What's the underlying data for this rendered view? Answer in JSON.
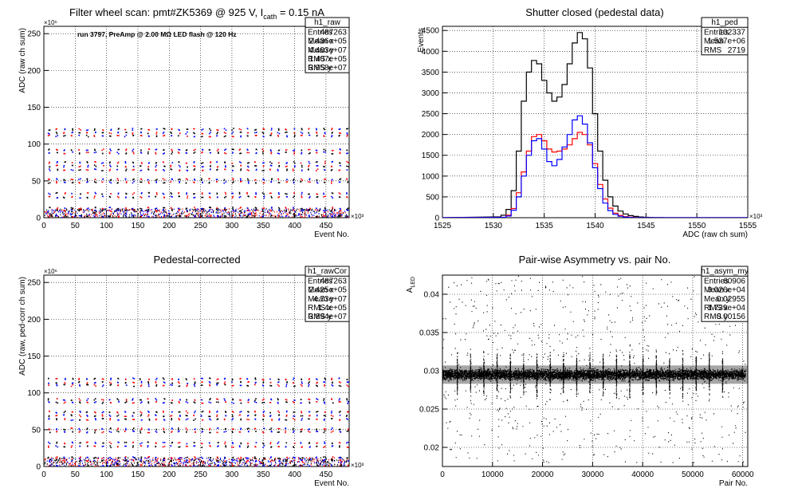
{
  "chart_data": [
    {
      "id": "raw",
      "type": "scatter",
      "title": "Filter wheel scan: pmt#ZK5369 @   925 V, I",
      "title_sub": "cath",
      "title_tail": " = 0.15 nA",
      "annotation": "run 3797, PreAmp @ 2.00 MΩ LED flash @  120 Hz",
      "xlabel": "Event No.",
      "ylabel": "ADC (raw ch sum)",
      "x_exponent": "×10³",
      "y_exponent": "×10⁶",
      "xlim": [
        0,
        487
      ],
      "ylim": [
        0,
        260
      ],
      "x_ticks": [
        "0",
        "50",
        "100",
        "150",
        "200",
        "250",
        "300",
        "350",
        "400",
        "450"
      ],
      "y_ticks": [
        "0",
        "50",
        "100",
        "150",
        "200",
        "250"
      ],
      "levels": [
        2,
        10,
        13,
        28,
        33,
        48,
        52,
        65,
        70,
        75,
        88,
        92,
        111,
        115,
        120
      ],
      "grid": true,
      "colors": {
        "series_a": "#ff0000",
        "series_b": "#0000ff",
        "ink": "#000000"
      },
      "stats": {
        "name": "h1_raw",
        "rows": [
          {
            "label": "Entries",
            "value": "487263"
          },
          {
            "label": "Mean x",
            "value": "2.436e+05"
          },
          {
            "label": "Mean y",
            "value": "4.403e+07"
          },
          {
            "label": "RMS x",
            "value": "1.407e+05"
          },
          {
            "label": "RMS y",
            "value": "3.958e+07"
          }
        ]
      }
    },
    {
      "id": "ped",
      "type": "line",
      "title": "Shutter closed (pedestal data)",
      "xlabel": "ADC (raw ch sum)",
      "ylabel": "Events",
      "x_exponent": "×10³",
      "xlim": [
        1525,
        1555
      ],
      "ylim": [
        0,
        4600
      ],
      "x_ticks": [
        "1525",
        "1530",
        "1535",
        "1540",
        "1545",
        "1550",
        "1555"
      ],
      "y_ticks": [
        "0",
        "500",
        "1000",
        "1500",
        "2000",
        "2500",
        "3000",
        "3500",
        "4000",
        "4500"
      ],
      "grid": true,
      "series": [
        {
          "color": "#000000",
          "x": [
            1530.5,
            1531,
            1531.5,
            1532,
            1532.5,
            1533,
            1533.5,
            1534,
            1534.5,
            1535,
            1535.5,
            1536,
            1536.5,
            1537,
            1537.5,
            1538,
            1538.5,
            1539,
            1539.5,
            1540,
            1540.5,
            1541,
            1541.5,
            1542,
            1542.5,
            1543,
            1543.5,
            1544,
            1544.5,
            1545,
            1545.5,
            1546,
            1546.5,
            1547
          ],
          "values": [
            20,
            60,
            200,
            650,
            1600,
            2800,
            3500,
            3780,
            3700,
            3300,
            3000,
            2800,
            2900,
            3200,
            3700,
            4200,
            4450,
            4300,
            3600,
            2500,
            1600,
            900,
            500,
            280,
            160,
            90,
            50,
            30,
            18,
            10,
            6,
            4,
            2,
            0
          ]
        },
        {
          "color": "#ff0000",
          "x": [
            1531,
            1531.5,
            1532,
            1532.5,
            1533,
            1533.5,
            1534,
            1534.5,
            1535,
            1535.5,
            1536,
            1536.5,
            1537,
            1537.5,
            1538,
            1538.5,
            1539,
            1539.5,
            1540,
            1540.5,
            1541,
            1541.5,
            1542,
            1542.5,
            1543,
            1543.5,
            1544,
            1544.5
          ],
          "values": [
            10,
            60,
            220,
            600,
            1100,
            1600,
            1950,
            2000,
            1850,
            1650,
            1580,
            1600,
            1650,
            1750,
            1900,
            2050,
            2000,
            1750,
            1300,
            800,
            450,
            230,
            110,
            55,
            25,
            12,
            5,
            0
          ]
        },
        {
          "color": "#0000ff",
          "x": [
            1531,
            1531.5,
            1532,
            1532.5,
            1533,
            1533.5,
            1534,
            1534.5,
            1535,
            1535.5,
            1536,
            1536.5,
            1537,
            1537.5,
            1538,
            1538.5,
            1539,
            1539.5,
            1540,
            1540.5,
            1541,
            1541.5,
            1542,
            1542.5,
            1543,
            1543.5,
            1544
          ],
          "values": [
            8,
            40,
            180,
            500,
            1000,
            1500,
            1850,
            1900,
            1650,
            1350,
            1250,
            1400,
            1700,
            2000,
            2350,
            2450,
            2250,
            1800,
            1200,
            700,
            350,
            170,
            80,
            35,
            15,
            6,
            0
          ]
        }
      ],
      "stats": {
        "name": "h1_ped",
        "rows": [
          {
            "label": "Entries",
            "value": "102337"
          },
          {
            "label": "Mean",
            "value": "1.537e+06"
          },
          {
            "label": "RMS",
            "value": "2719"
          }
        ]
      }
    },
    {
      "id": "cor",
      "type": "scatter",
      "title": "Pedestal-corrected",
      "xlabel": "Event No.",
      "ylabel": "ADC (raw, ped-corr ch sum)",
      "x_exponent": "×10³",
      "y_exponent": "×10⁶",
      "xlim": [
        0,
        487
      ],
      "ylim": [
        0,
        260
      ],
      "x_ticks": [
        "0",
        "50",
        "100",
        "150",
        "200",
        "250",
        "300",
        "350",
        "400",
        "450"
      ],
      "y_ticks": [
        "0",
        "50",
        "100",
        "150",
        "200",
        "250"
      ],
      "levels": [
        1,
        8,
        12,
        27,
        32,
        47,
        51,
        64,
        69,
        74,
        87,
        91,
        110,
        114,
        119
      ],
      "grid": true,
      "stats": {
        "name": "h1_rawCor",
        "rows": [
          {
            "label": "Entries",
            "value": "487263"
          },
          {
            "label": "Mean x",
            "value": "2.425e+05"
          },
          {
            "label": "Mean y",
            "value": "4.73e+07"
          },
          {
            "label": "RMS x",
            "value": "1.4e+05"
          },
          {
            "label": "RMS y",
            "value": "3.894e+07"
          }
        ]
      }
    },
    {
      "id": "asym",
      "type": "scatter",
      "title": "Pair-wise Asymmetry vs. pair No.",
      "xlabel": "Pair No.",
      "ylabel": "A",
      "ylabel_sub": "LED",
      "xlim": [
        0,
        61000
      ],
      "ylim": [
        0.0175,
        0.0425
      ],
      "x_ticks": [
        "0",
        "10000",
        "20000",
        "30000",
        "40000",
        "50000",
        "60000"
      ],
      "y_ticks": [
        "0.02",
        "0.025",
        "0.03",
        "0.035",
        "0.04"
      ],
      "band_center": 0.0295,
      "grid": true,
      "stats": {
        "name": "h1_asym_my",
        "rows": [
          {
            "label": "Entries",
            "value": "60906"
          },
          {
            "label": "Mean x",
            "value": "3.026e+04"
          },
          {
            "label": "Mean y",
            "value": "0.02955"
          },
          {
            "label": "RMS x",
            "value": "1.739e+04"
          },
          {
            "label": "RMS y",
            "value": "0.00156"
          }
        ]
      }
    }
  ]
}
